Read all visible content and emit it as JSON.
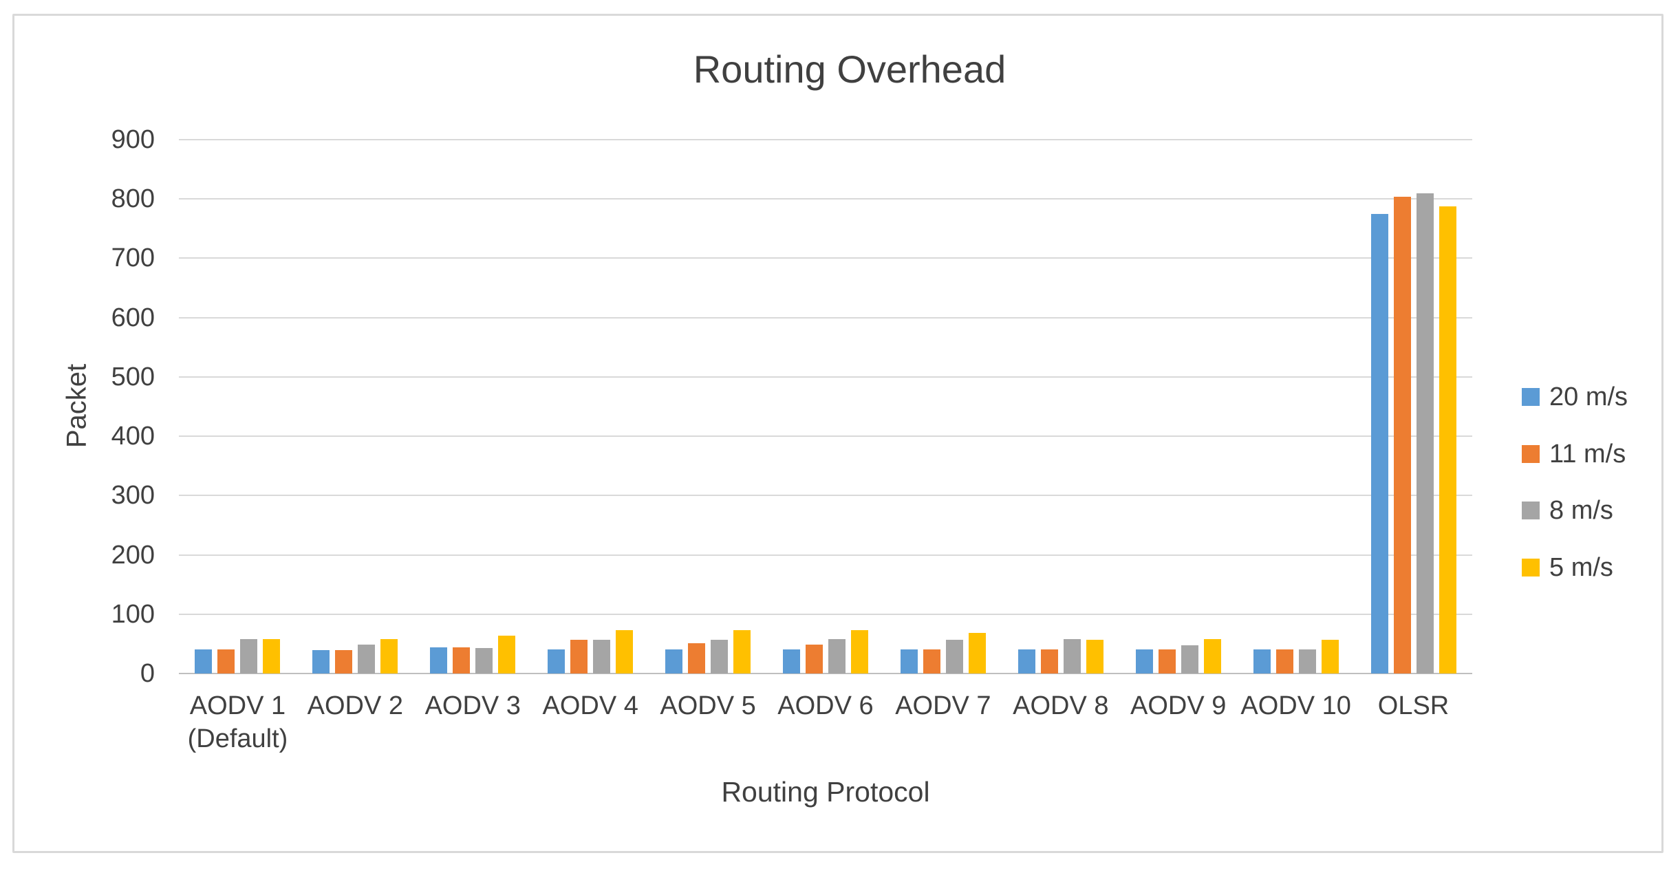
{
  "chart": {
    "background": "#FFFFFF",
    "border_color": "#D9D9D9"
  },
  "chart_data": {
    "type": "bar",
    "title": "Routing Overhead",
    "xlabel": "Routing Protocol",
    "ylabel": "Packet",
    "ylim": [
      0,
      900
    ],
    "ytick_interval": 100,
    "y_ticks": [
      "900",
      "800",
      "700",
      "600",
      "500",
      "400",
      "300",
      "200",
      "100",
      "0"
    ],
    "grid": true,
    "legend_position": "right",
    "text_color": "#404040",
    "gridline_color": "#D9D9D9",
    "axis_line_color": "#BFBFBF",
    "categories": [
      "AODV 1 (Default)",
      "AODV 2",
      "AODV 3",
      "AODV 4",
      "AODV 5",
      "AODV 6",
      "AODV 7",
      "AODV 8",
      "AODV 9",
      "AODV 10",
      "OLSR"
    ],
    "category_lines": [
      [
        "AODV 1",
        "(Default)"
      ],
      [
        "AODV 2"
      ],
      [
        "AODV 3"
      ],
      [
        "AODV 4"
      ],
      [
        "AODV 5"
      ],
      [
        "AODV 6"
      ],
      [
        "AODV 7"
      ],
      [
        "AODV 8"
      ],
      [
        "AODV 9"
      ],
      [
        "AODV 10"
      ],
      [
        "OLSR"
      ]
    ],
    "series": [
      {
        "name": "20 m/s",
        "color": "#5B9BD5",
        "values": [
          41,
          39,
          44,
          41,
          41,
          41,
          41,
          41,
          41,
          41,
          775
        ]
      },
      {
        "name": "11 m/s",
        "color": "#ED7D31",
        "values": [
          41,
          39,
          44,
          57,
          51,
          49,
          41,
          41,
          41,
          41,
          804
        ]
      },
      {
        "name": "8 m/s",
        "color": "#A5A5A5",
        "values": [
          58,
          49,
          43,
          57,
          57,
          58,
          57,
          58,
          48,
          41,
          809
        ]
      },
      {
        "name": "5 m/s",
        "color": "#FFC000",
        "values": [
          58,
          58,
          64,
          73,
          73,
          73,
          68,
          57,
          58,
          57,
          787
        ]
      }
    ]
  }
}
